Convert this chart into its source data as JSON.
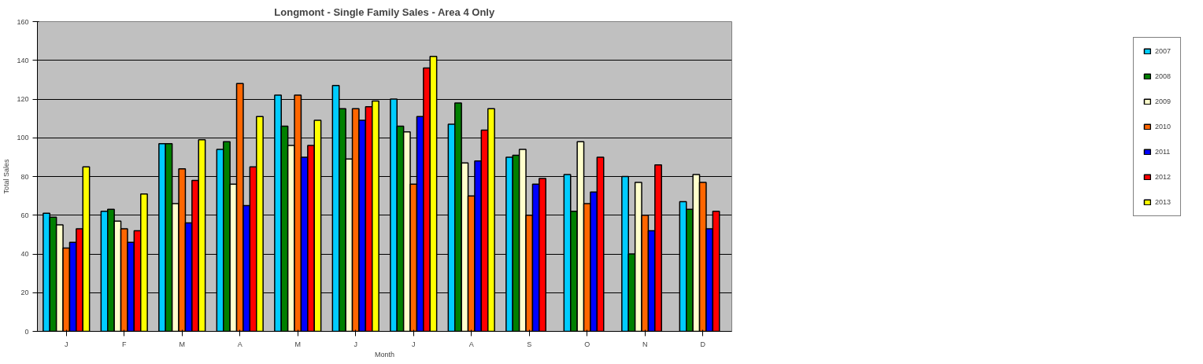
{
  "chart_data": {
    "type": "bar",
    "title": "Longmont - Single Family Sales - Area 4 Only",
    "xlabel": "Month",
    "ylabel": "Total Sales",
    "categories": [
      "J",
      "F",
      "M",
      "A",
      "M",
      "J",
      "J",
      "A",
      "S",
      "O",
      "N",
      "D"
    ],
    "series": [
      {
        "name": "2007",
        "color": "#00ccff",
        "values": [
          61,
          62,
          97,
          94,
          122,
          127,
          120,
          107,
          90,
          81,
          80,
          67
        ]
      },
      {
        "name": "2008",
        "color": "#008000",
        "values": [
          59,
          63,
          97,
          98,
          106,
          115,
          106,
          118,
          91,
          62,
          40,
          63
        ]
      },
      {
        "name": "2009",
        "color": "#ffffcc",
        "values": [
          55,
          57,
          66,
          76,
          96,
          89,
          103,
          87,
          94,
          98,
          77,
          81
        ]
      },
      {
        "name": "2010",
        "color": "#ff6600",
        "values": [
          43,
          53,
          84,
          128,
          122,
          115,
          76,
          70,
          60,
          66,
          60,
          77
        ]
      },
      {
        "name": "2011",
        "color": "#0000ff",
        "values": [
          46,
          46,
          56,
          65,
          90,
          109,
          111,
          88,
          76,
          72,
          52,
          53
        ]
      },
      {
        "name": "2012",
        "color": "#ff0000",
        "values": [
          53,
          52,
          78,
          85,
          96,
          116,
          136,
          104,
          79,
          90,
          86,
          62
        ]
      },
      {
        "name": "2013",
        "color": "#ffff00",
        "values": [
          85,
          71,
          99,
          111,
          109,
          119,
          142,
          115,
          null,
          null,
          null,
          null
        ]
      }
    ],
    "ylim": [
      0,
      160
    ],
    "yticks": [
      0,
      20,
      40,
      60,
      80,
      100,
      120,
      140,
      160
    ],
    "grid": "y",
    "legend": "right"
  }
}
